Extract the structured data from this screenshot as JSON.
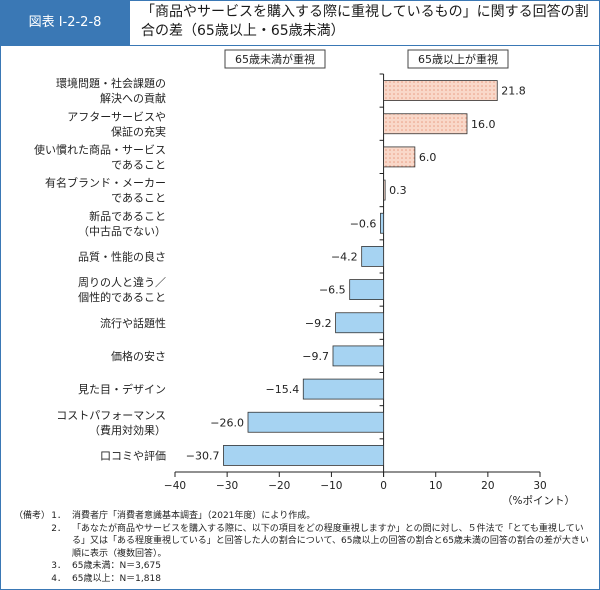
{
  "header": {
    "figure_label": "図表 I-2-2-8",
    "title": "「商品やサービスを購入する際に重視しているもの」に関する回答の割合の差（65歳以上・65歳未満）"
  },
  "chart_data": {
    "type": "bar",
    "orientation": "horizontal",
    "categories": [
      [
        "環境問題・社会課題の",
        "解決への貢献"
      ],
      [
        "アフターサービスや",
        "保証の充実"
      ],
      [
        "使い慣れた商品・サービス",
        "であること"
      ],
      [
        "有名ブランド・メーカー",
        "であること"
      ],
      [
        "新品であること",
        "（中古品でない）"
      ],
      [
        "品質・性能の良さ"
      ],
      [
        "周りの人と違う／",
        "個性的であること"
      ],
      [
        "流行や話題性"
      ],
      [
        "価格の安さ"
      ],
      [
        "見た目・デザイン"
      ],
      [
        "コストパフォーマンス",
        "（費用対効果）"
      ],
      [
        "口コミや評価"
      ]
    ],
    "values": [
      21.8,
      16.0,
      6.0,
      0.3,
      -0.6,
      -4.2,
      -6.5,
      -9.2,
      -9.7,
      -15.4,
      -26.0,
      -30.7
    ],
    "value_labels": [
      "21.8",
      "16.0",
      "6.0",
      "0.3",
      "−0.6",
      "−4.2",
      "−6.5",
      "−9.2",
      "−9.7",
      "−15.4",
      "−26.0",
      "−30.7"
    ],
    "xlim": [
      -40,
      30
    ],
    "x_ticks": [
      -40,
      -30,
      -20,
      -10,
      0,
      10,
      20,
      30
    ],
    "x_tick_labels": [
      "−40",
      "−30",
      "−20",
      "−10",
      "0",
      "10",
      "20",
      "30"
    ],
    "xlabel": "（%ポイント）",
    "legend_negative": "65歳未満が重視",
    "legend_positive": "65歳以上が重視",
    "colors": {
      "negative_fill": "#a6d3f2",
      "positive_fill": "#f9d8c9",
      "positive_dot": "#e89a80",
      "bar_stroke": "#333333",
      "accent": "#3a78b5"
    }
  },
  "notes": {
    "lead": "（備考）",
    "items": [
      {
        "num": "1．",
        "text": "消費者庁「消費者意識基本調査」（2021年度）により作成。"
      },
      {
        "num": "2．",
        "text": "「あなたが商品やサービスを購入する際に、以下の項目をどの程度重視しますか」との問に対し、５件法で「とても重視している」又は「ある程度重視している」と回答した人の割合について、65歳以上の回答の割合と65歳未満の回答の割合の差が大きい順に表示（複数回答）。"
      },
      {
        "num": "3．",
        "text": "65歳未満：N＝3,675"
      },
      {
        "num": "4．",
        "text": "65歳以上：N＝1,818"
      }
    ]
  }
}
